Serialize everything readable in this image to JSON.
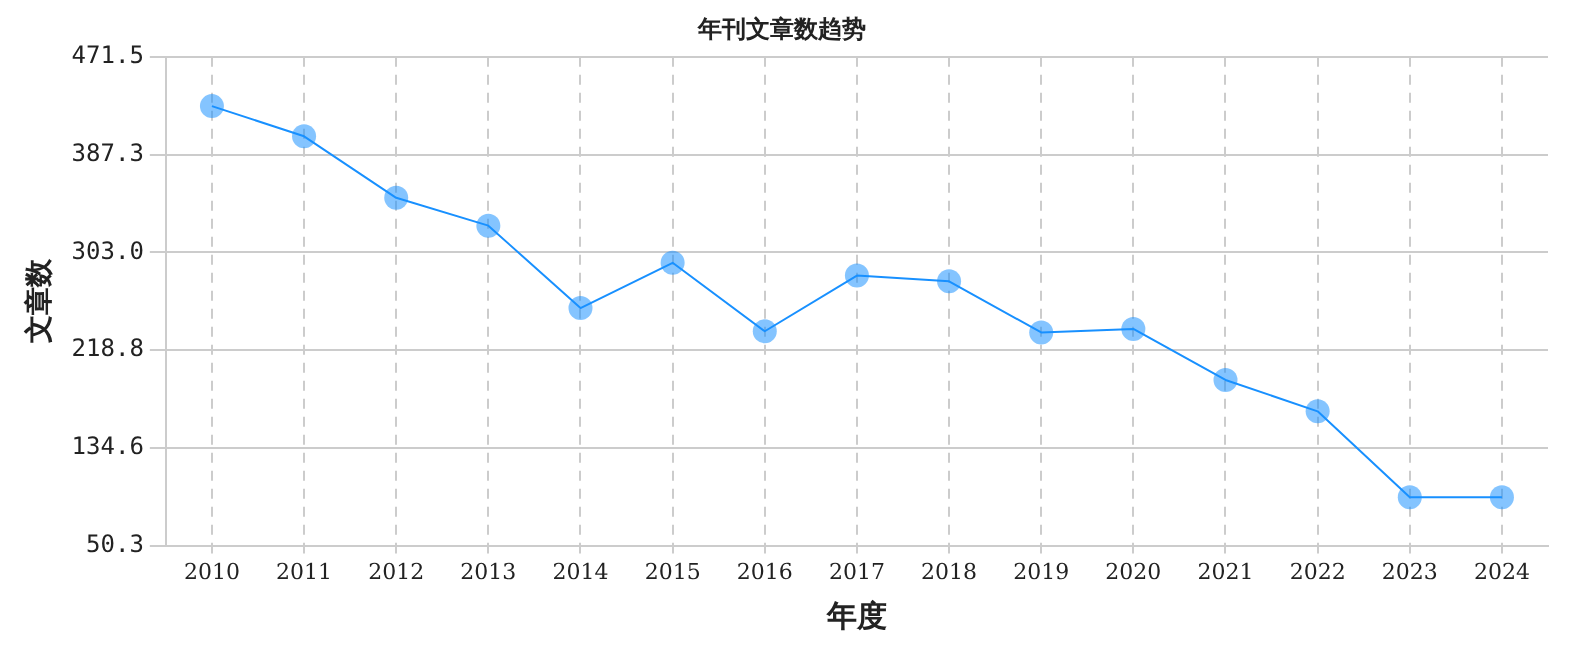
{
  "chart_data": {
    "type": "line",
    "title": "年刊文章数趋势",
    "xlabel": "年度",
    "ylabel": "文章数",
    "categories": [
      "2010",
      "2011",
      "2012",
      "2013",
      "2014",
      "2015",
      "2016",
      "2017",
      "2018",
      "2019",
      "2020",
      "2021",
      "2022",
      "2023",
      "2024"
    ],
    "series": [
      {
        "color": "#1890ff",
        "values": [
          429,
          403,
          350,
          326,
          255,
          294,
          235,
          283,
          278,
          234,
          237,
          193,
          166,
          92,
          92
        ]
      }
    ],
    "ylim": [
      50.3,
      471.5
    ],
    "yticks": [
      {
        "value": 50.3,
        "label": "50.3"
      },
      {
        "value": 134.6,
        "label": "134.6"
      },
      {
        "value": 218.8,
        "label": "218.8"
      },
      {
        "value": 303.0,
        "label": "303.0"
      },
      {
        "value": 387.3,
        "label": "387.3"
      },
      {
        "value": 471.5,
        "label": "471.5"
      }
    ],
    "grid": true,
    "marker": "circle",
    "line_style": "solid",
    "legend": false
  }
}
